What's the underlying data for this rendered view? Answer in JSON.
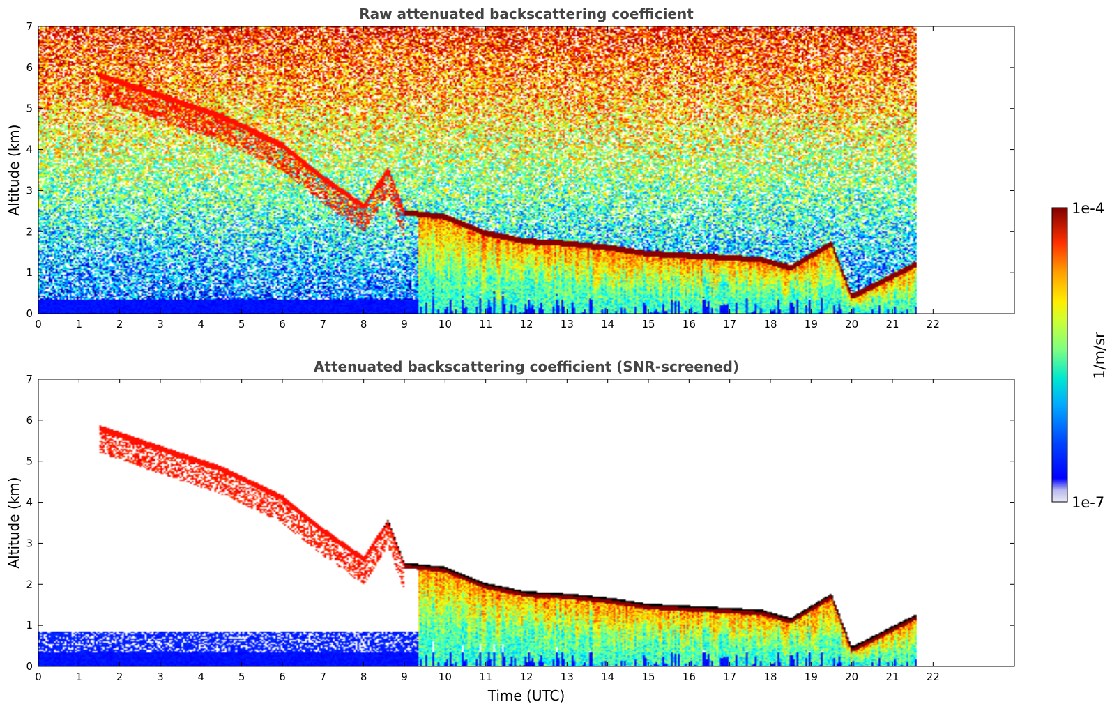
{
  "chart_data": [
    {
      "type": "heatmap",
      "title": "Raw attenuated backscattering coefficient",
      "xlabel": "",
      "ylabel": "Altitude (km)",
      "xlim": [
        0,
        24
      ],
      "ylim": [
        0,
        7
      ],
      "xticks": [
        0,
        1,
        2,
        3,
        4,
        5,
        6,
        7,
        8,
        9,
        10,
        11,
        12,
        13,
        14,
        15,
        16,
        17,
        18,
        19,
        20,
        21,
        22
      ],
      "yticks": [
        0,
        1,
        2,
        3,
        4,
        5,
        6,
        7
      ],
      "data_extent_hours": [
        0,
        21.6
      ],
      "screening": "none",
      "cloud_layer_base_km": [
        {
          "t": 1.5,
          "z": 5.8
        },
        {
          "t": 3,
          "z": 5.3
        },
        {
          "t": 4.5,
          "z": 4.8
        },
        {
          "t": 6,
          "z": 4.1
        },
        {
          "t": 7,
          "z": 3.3
        },
        {
          "t": 8,
          "z": 2.6
        },
        {
          "t": 8.6,
          "z": 3.5
        },
        {
          "t": 9,
          "z": 2.45
        },
        {
          "t": 10,
          "z": 2.35
        },
        {
          "t": 11,
          "z": 1.95
        },
        {
          "t": 12,
          "z": 1.75
        },
        {
          "t": 13,
          "z": 1.7
        },
        {
          "t": 14,
          "z": 1.6
        },
        {
          "t": 15,
          "z": 1.45
        },
        {
          "t": 16,
          "z": 1.4
        },
        {
          "t": 17,
          "z": 1.35
        },
        {
          "t": 17.8,
          "z": 1.3
        },
        {
          "t": 18.5,
          "z": 1.1
        },
        {
          "t": 19.5,
          "z": 1.7
        },
        {
          "t": 20,
          "z": 0.4
        },
        {
          "t": 21.6,
          "z": 1.2
        }
      ]
    },
    {
      "type": "heatmap",
      "title": "Attenuated backscattering coefficient (SNR-screened)",
      "xlabel": "Time (UTC)",
      "ylabel": "Altitude (km)",
      "xlim": [
        0,
        24
      ],
      "ylim": [
        0,
        7
      ],
      "xticks": [
        0,
        1,
        2,
        3,
        4,
        5,
        6,
        7,
        8,
        9,
        10,
        11,
        12,
        13,
        14,
        15,
        16,
        17,
        18,
        19,
        20,
        21,
        22
      ],
      "yticks": [
        0,
        1,
        2,
        3,
        4,
        5,
        6,
        7
      ],
      "data_extent_hours": [
        0,
        21.6
      ],
      "screening": "SNR"
    }
  ],
  "colorbar": {
    "label": "1/m/sr",
    "max_label": "1e-4",
    "min_label": "1e-7",
    "scale": "log",
    "range": [
      1e-07,
      0.0001
    ],
    "colormap": "jet"
  }
}
